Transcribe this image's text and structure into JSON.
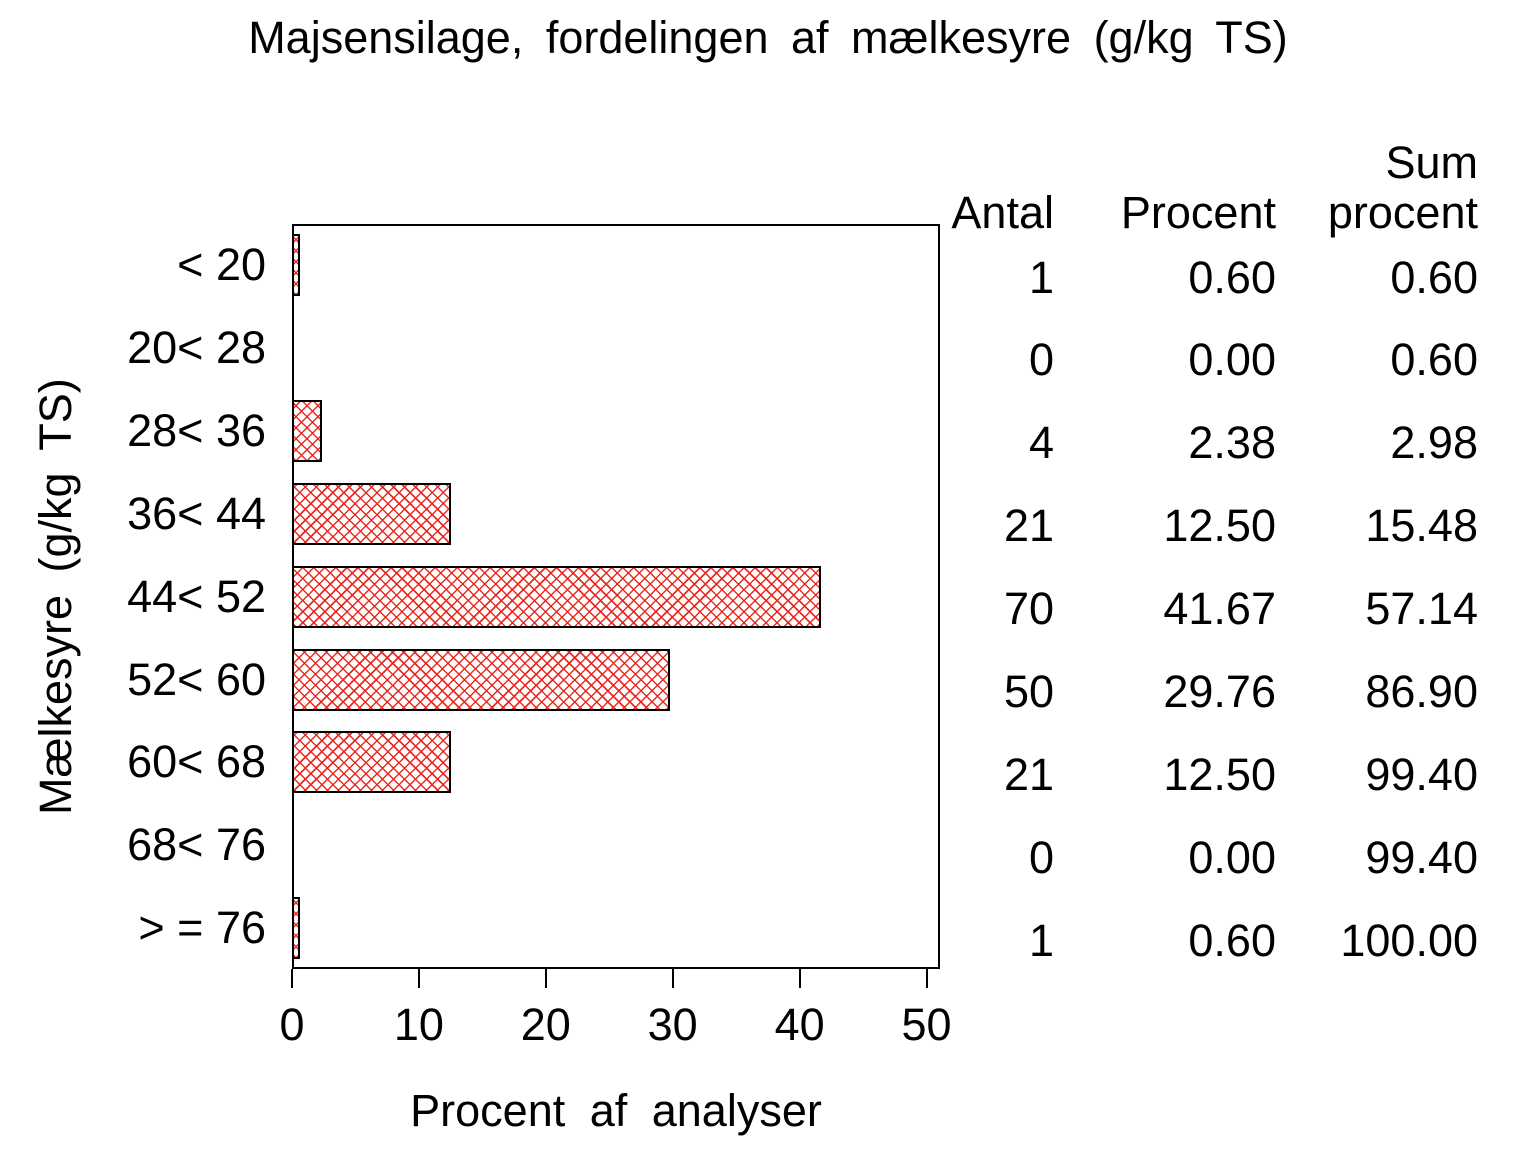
{
  "title": "Majsensilage, fordelingen af mælkesyre (g/kg TS)",
  "colors": {
    "background": "#ffffff",
    "text": "#000000",
    "bar_hatch": "#e82118",
    "bar_border": "#000000",
    "frame_border": "#000000"
  },
  "chart_data": {
    "type": "bar",
    "orientation": "horizontal",
    "title": "Majsensilage, fordelingen af mælkesyre (g/kg TS)",
    "xlabel": "Procent af analyser",
    "ylabel": "Mælkesyre (g/kg TS)",
    "xlim": [
      0,
      50
    ],
    "xticks": [
      "0",
      "10",
      "20",
      "30",
      "40",
      "50"
    ],
    "grid": false,
    "legend": false,
    "bar_style": "red diagonal crosshatch on white, black outline",
    "categories": [
      "< 20",
      "20< 28",
      "28< 36",
      "36< 44",
      "44< 52",
      "52< 60",
      "60< 68",
      "68< 76",
      "> = 76"
    ],
    "values": [
      0.6,
      0.0,
      2.38,
      12.5,
      41.67,
      29.76,
      12.5,
      0.0,
      0.6
    ],
    "table": {
      "headers": {
        "antal": "Antal",
        "procent": "Procent",
        "sum_line1": "Sum",
        "sum_line2": "procent"
      },
      "rows": [
        {
          "antal": "1",
          "procent": "0.60",
          "sum": "0.60"
        },
        {
          "antal": "0",
          "procent": "0.00",
          "sum": "0.60"
        },
        {
          "antal": "4",
          "procent": "2.38",
          "sum": "2.98"
        },
        {
          "antal": "21",
          "procent": "12.50",
          "sum": "15.48"
        },
        {
          "antal": "70",
          "procent": "41.67",
          "sum": "57.14"
        },
        {
          "antal": "50",
          "procent": "29.76",
          "sum": "86.90"
        },
        {
          "antal": "21",
          "procent": "12.50",
          "sum": "99.40"
        },
        {
          "antal": "0",
          "procent": "0.00",
          "sum": "99.40"
        },
        {
          "antal": "1",
          "procent": "0.60",
          "sum": "100.00"
        }
      ]
    }
  }
}
